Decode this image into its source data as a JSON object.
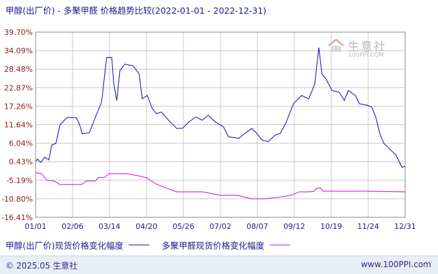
{
  "header": {
    "title": "甲醇(出厂价) - 多聚甲醛 价格趋势比较(2022-01-01 - 2022-12-31)"
  },
  "watermark": {
    "name": "生意社",
    "url": "100PPI.COM"
  },
  "legend": {
    "series1_label": "甲醇(出厂价)现货价格变化幅度",
    "series2_label": "多聚甲醛现货价格变化幅度"
  },
  "footer": {
    "copyright": "© 2025.05 生意社",
    "site": "www.100PPI.com"
  },
  "colors": {
    "series1": "#1f1fb4",
    "series2": "#cc22cc",
    "grid": "#c8c8c8",
    "axis": "#555555"
  },
  "chart_data": {
    "type": "line",
    "title": "甲醇(出厂价) - 多聚甲醛 价格趋势比较(2022-01-01 - 2022-12-31)",
    "xlabel": "",
    "ylabel": "",
    "x_ticks": [
      "01/01",
      "02/06",
      "03/14",
      "04/20",
      "05/26",
      "07/02",
      "08/07",
      "09/12",
      "10/19",
      "11/24",
      "12/31"
    ],
    "y_ticks": [
      "39.70%",
      "34.09%",
      "28.48%",
      "22.87%",
      "17.26%",
      "11.64%",
      "6.04%",
      "0.43%",
      "-5.19%",
      "-10.80%",
      "-16.41%"
    ],
    "ylim": [
      -16.41,
      39.7
    ],
    "xlim": [
      "2022-01-01",
      "2022-12-31"
    ],
    "unit": "%",
    "grid": true,
    "legend_position": "bottom",
    "series": [
      {
        "name": "甲醇(出厂价)现货价格变化幅度",
        "color": "#1f1fb4",
        "points": [
          [
            "2022-01-01",
            0.43
          ],
          [
            "2022-01-03",
            1.2
          ],
          [
            "2022-01-06",
            0.2
          ],
          [
            "2022-01-10",
            1.8
          ],
          [
            "2022-01-14",
            1.0
          ],
          [
            "2022-01-17",
            5.5
          ],
          [
            "2022-01-21",
            6.0
          ],
          [
            "2022-01-25",
            11.6
          ],
          [
            "2022-02-01",
            13.8
          ],
          [
            "2022-02-10",
            13.8
          ],
          [
            "2022-02-13",
            12.0
          ],
          [
            "2022-02-16",
            8.9
          ],
          [
            "2022-02-23",
            9.2
          ],
          [
            "2022-03-01",
            14.0
          ],
          [
            "2022-03-07",
            18.5
          ],
          [
            "2022-03-12",
            32.0
          ],
          [
            "2022-03-17",
            32.0
          ],
          [
            "2022-03-19",
            24.0
          ],
          [
            "2022-03-22",
            19.0
          ],
          [
            "2022-03-25",
            28.0
          ],
          [
            "2022-03-30",
            30.0
          ],
          [
            "2022-04-07",
            29.5
          ],
          [
            "2022-04-13",
            27.0
          ],
          [
            "2022-04-16",
            19.5
          ],
          [
            "2022-04-21",
            20.5
          ],
          [
            "2022-04-26",
            16.5
          ],
          [
            "2022-04-30",
            15.0
          ],
          [
            "2022-05-05",
            15.5
          ],
          [
            "2022-05-12",
            13.0
          ],
          [
            "2022-05-20",
            10.5
          ],
          [
            "2022-05-26",
            10.6
          ],
          [
            "2022-06-01",
            12.5
          ],
          [
            "2022-06-08",
            14.0
          ],
          [
            "2022-06-14",
            13.0
          ],
          [
            "2022-06-20",
            14.5
          ],
          [
            "2022-06-27",
            12.5
          ],
          [
            "2022-07-05",
            11.0
          ],
          [
            "2022-07-10",
            8.0
          ],
          [
            "2022-07-20",
            7.5
          ],
          [
            "2022-07-26",
            9.0
          ],
          [
            "2022-08-02",
            10.5
          ],
          [
            "2022-08-07",
            9.0
          ],
          [
            "2022-08-12",
            7.0
          ],
          [
            "2022-08-18",
            6.5
          ],
          [
            "2022-08-25",
            8.5
          ],
          [
            "2022-08-30",
            9.0
          ],
          [
            "2022-09-05",
            12.5
          ],
          [
            "2022-09-12",
            18.0
          ],
          [
            "2022-09-20",
            20.5
          ],
          [
            "2022-09-27",
            19.5
          ],
          [
            "2022-10-03",
            24.0
          ],
          [
            "2022-10-07",
            35.0
          ],
          [
            "2022-10-10",
            27.0
          ],
          [
            "2022-10-14",
            25.5
          ],
          [
            "2022-10-20",
            22.0
          ],
          [
            "2022-10-27",
            21.5
          ],
          [
            "2022-11-01",
            19.0
          ],
          [
            "2022-11-05",
            22.0
          ],
          [
            "2022-11-12",
            20.5
          ],
          [
            "2022-11-16",
            18.0
          ],
          [
            "2022-11-24",
            17.5
          ],
          [
            "2022-11-28",
            17.0
          ],
          [
            "2022-12-02",
            14.0
          ],
          [
            "2022-12-06",
            9.0
          ],
          [
            "2022-12-10",
            6.0
          ],
          [
            "2022-12-16",
            4.2
          ],
          [
            "2022-12-22",
            2.5
          ],
          [
            "2022-12-28",
            -1.3
          ],
          [
            "2022-12-31",
            -0.9
          ]
        ]
      },
      {
        "name": "多聚甲醛现货价格变化幅度",
        "color": "#cc22cc",
        "points": [
          [
            "2022-01-01",
            -2.9
          ],
          [
            "2022-01-07",
            -3.2
          ],
          [
            "2022-01-12",
            -5.2
          ],
          [
            "2022-01-19",
            -5.4
          ],
          [
            "2022-01-25",
            -6.5
          ],
          [
            "2022-02-06",
            -6.5
          ],
          [
            "2022-02-15",
            -6.5
          ],
          [
            "2022-02-20",
            -5.4
          ],
          [
            "2022-03-01",
            -5.4
          ],
          [
            "2022-03-04",
            -4.3
          ],
          [
            "2022-03-10",
            -4.3
          ],
          [
            "2022-03-14",
            -3.2
          ],
          [
            "2022-03-22",
            -3.2
          ],
          [
            "2022-04-01",
            -3.2
          ],
          [
            "2022-04-10",
            -3.7
          ],
          [
            "2022-04-20",
            -4.4
          ],
          [
            "2022-04-25",
            -5.4
          ],
          [
            "2022-05-01",
            -6.5
          ],
          [
            "2022-05-10",
            -7.6
          ],
          [
            "2022-05-20",
            -8.7
          ],
          [
            "2022-06-01",
            -8.7
          ],
          [
            "2022-06-15",
            -8.7
          ],
          [
            "2022-07-01",
            -9.7
          ],
          [
            "2022-07-20",
            -9.8
          ],
          [
            "2022-08-01",
            -10.8
          ],
          [
            "2022-08-15",
            -10.8
          ],
          [
            "2022-09-01",
            -10.2
          ],
          [
            "2022-09-10",
            -9.7
          ],
          [
            "2022-09-18",
            -8.7
          ],
          [
            "2022-09-26",
            -8.7
          ],
          [
            "2022-10-02",
            -8.6
          ],
          [
            "2022-10-05",
            -7.6
          ],
          [
            "2022-10-09",
            -7.6
          ],
          [
            "2022-10-11",
            -8.5
          ],
          [
            "2022-11-01",
            -8.5
          ],
          [
            "2022-11-20",
            -8.5
          ],
          [
            "2022-12-10",
            -8.6
          ],
          [
            "2022-12-31",
            -8.7
          ]
        ]
      }
    ]
  }
}
